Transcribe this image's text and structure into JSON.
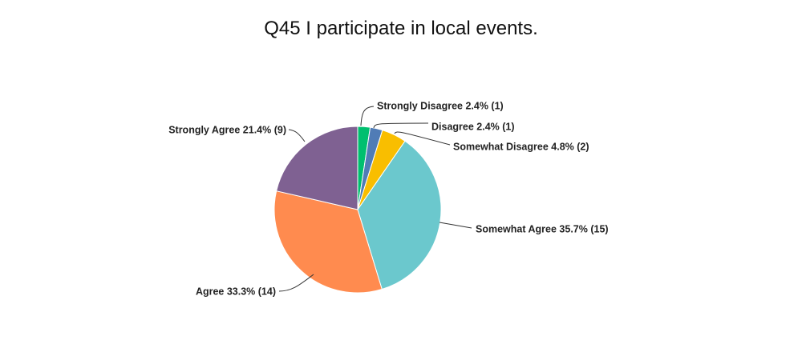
{
  "chart_data": {
    "type": "pie",
    "title": "Q45 I participate in local events.",
    "slices": [
      {
        "label": "Strongly Disagree 2.4% (1)",
        "name": "Strongly Disagree",
        "percent": 2.4,
        "count": 1,
        "color": "#00bf6f"
      },
      {
        "label": "Disagree 2.4% (1)",
        "name": "Disagree",
        "percent": 2.4,
        "count": 1,
        "color": "#507cb6"
      },
      {
        "label": "Somewhat Disagree 4.8% (2)",
        "name": "Somewhat Disagree",
        "percent": 4.8,
        "count": 2,
        "color": "#f9be00"
      },
      {
        "label": "Somewhat Agree 35.7% (15)",
        "name": "Somewhat Agree",
        "percent": 35.7,
        "count": 15,
        "color": "#6bc8cd"
      },
      {
        "label": "Agree 33.3% (14)",
        "name": "Agree",
        "percent": 33.3,
        "count": 14,
        "color": "#ff8b4f"
      },
      {
        "label": "Strongly Agree 21.4% (9)",
        "name": "Strongly Agree",
        "percent": 21.4,
        "count": 9,
        "color": "#7f6192"
      }
    ]
  }
}
